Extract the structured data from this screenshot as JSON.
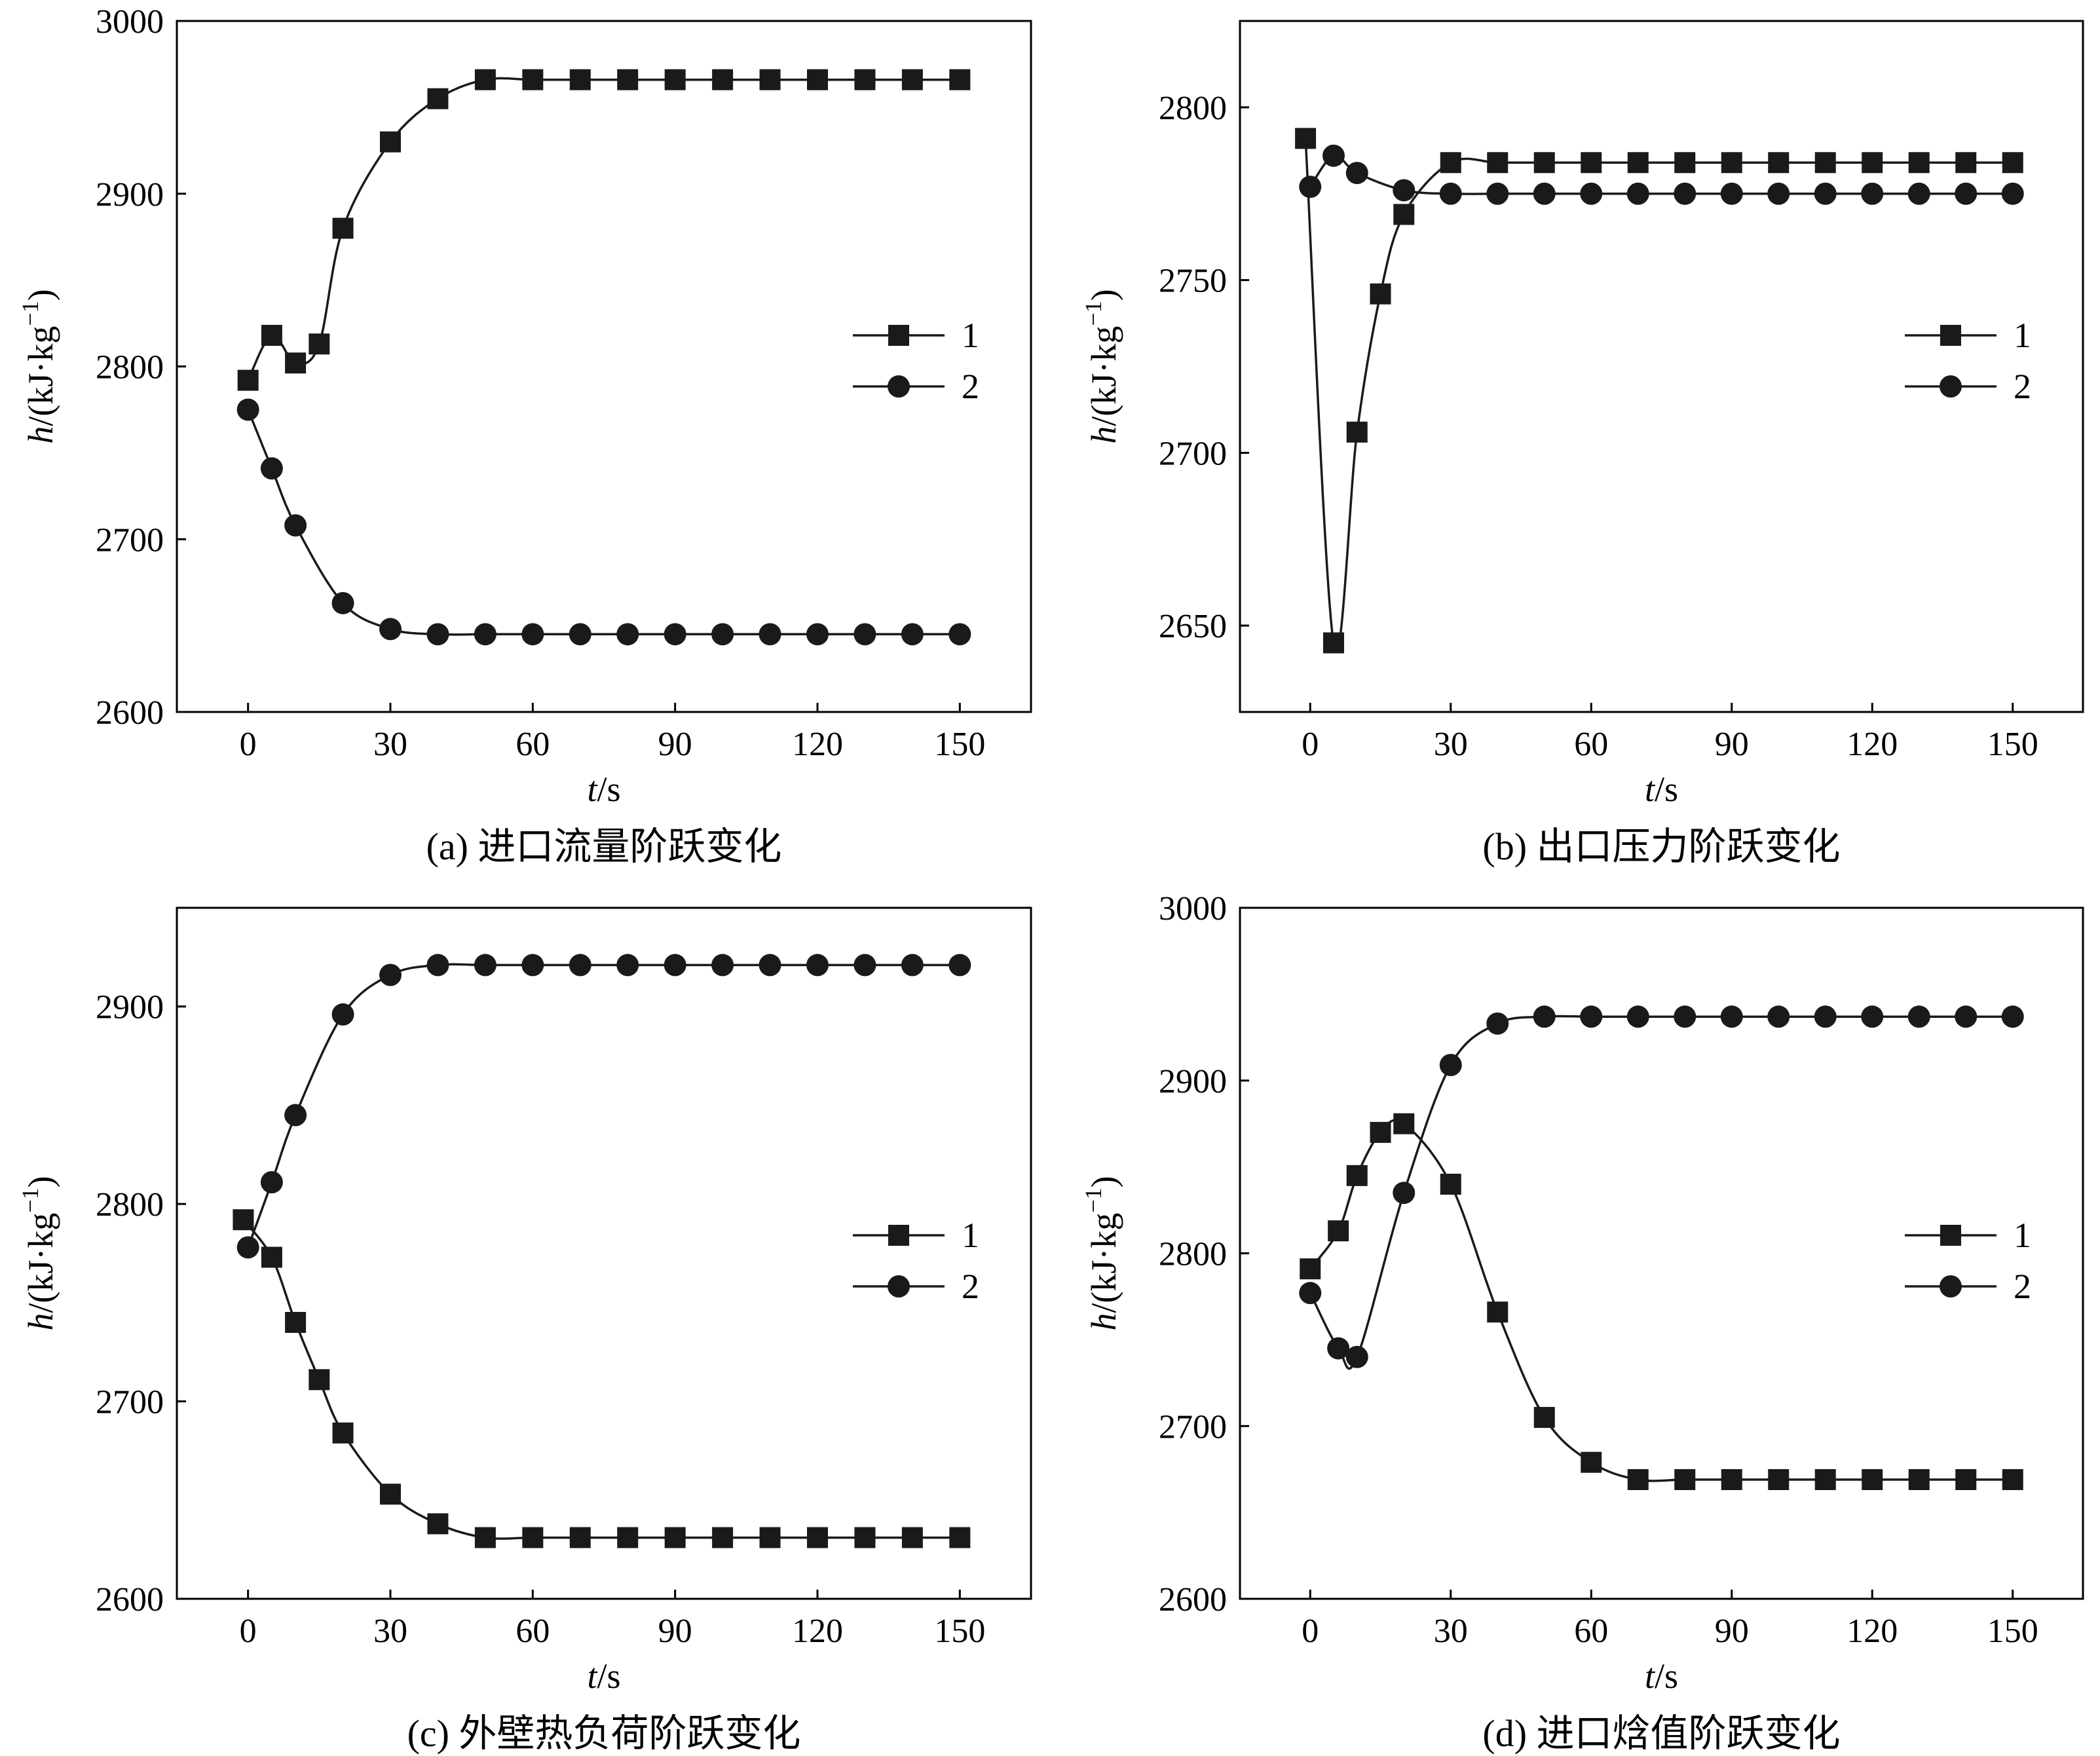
{
  "chart_data": [
    {
      "type": "line",
      "caption": "(a) 进口流量阶跃变化",
      "xlabel": "t/s",
      "ylabel": "h/(kJ·kg−1)",
      "xlim": [
        -15,
        165
      ],
      "ylim": [
        2600,
        3000
      ],
      "xticks": [
        0,
        30,
        60,
        90,
        120,
        150
      ],
      "yticks": [
        2600,
        2700,
        2800,
        2900,
        3000
      ],
      "legend": "right",
      "series": [
        {
          "name": "1",
          "marker": "square",
          "x": [
            0,
            5,
            10,
            15,
            20,
            30,
            40,
            50,
            60,
            70,
            80,
            90,
            100,
            110,
            120,
            130,
            140,
            150
          ],
          "y": [
            2792,
            2818,
            2802,
            2813,
            2880,
            2930,
            2955,
            2966,
            2966,
            2966,
            2966,
            2966,
            2966,
            2966,
            2966,
            2966,
            2966,
            2966
          ]
        },
        {
          "name": "2",
          "marker": "circle",
          "x": [
            0,
            5,
            10,
            20,
            30,
            40,
            50,
            60,
            70,
            80,
            90,
            100,
            110,
            120,
            130,
            140,
            150
          ],
          "y": [
            2775,
            2741,
            2708,
            2663,
            2648,
            2645,
            2645,
            2645,
            2645,
            2645,
            2645,
            2645,
            2645,
            2645,
            2645,
            2645,
            2645
          ]
        }
      ]
    },
    {
      "type": "line",
      "caption": "(b) 出口压力阶跃变化",
      "xlabel": "t/s",
      "ylabel": "h/(kJ·kg−1)",
      "xlim": [
        -15,
        165
      ],
      "ylim": [
        2625,
        2825
      ],
      "xticks": [
        0,
        30,
        60,
        90,
        120,
        150
      ],
      "yticks": [
        2650,
        2700,
        2750,
        2800
      ],
      "legend": "right",
      "series": [
        {
          "name": "1",
          "marker": "square",
          "x": [
            -1,
            5,
            10,
            15,
            20,
            30,
            40,
            50,
            60,
            70,
            80,
            90,
            100,
            110,
            120,
            130,
            140,
            150
          ],
          "y": [
            2791,
            2645,
            2706,
            2746,
            2769,
            2784,
            2784,
            2784,
            2784,
            2784,
            2784,
            2784,
            2784,
            2784,
            2784,
            2784,
            2784,
            2784
          ]
        },
        {
          "name": "2",
          "marker": "circle",
          "x": [
            0,
            5,
            10,
            20,
            30,
            40,
            50,
            60,
            70,
            80,
            90,
            100,
            110,
            120,
            130,
            140,
            150
          ],
          "y": [
            2777,
            2786,
            2781,
            2776,
            2775,
            2775,
            2775,
            2775,
            2775,
            2775,
            2775,
            2775,
            2775,
            2775,
            2775,
            2775,
            2775
          ]
        }
      ]
    },
    {
      "type": "line",
      "caption": "(c) 外壁热负荷阶跃变化",
      "xlabel": "t/s",
      "ylabel": "h/(kJ·kg−1)",
      "xlim": [
        -15,
        165
      ],
      "ylim": [
        2600,
        2950
      ],
      "xticks": [
        0,
        30,
        60,
        90,
        120,
        150
      ],
      "yticks": [
        2600,
        2700,
        2800,
        2900
      ],
      "legend": "right",
      "series": [
        {
          "name": "1",
          "marker": "square",
          "x": [
            -1,
            5,
            10,
            15,
            20,
            30,
            40,
            50,
            60,
            70,
            80,
            90,
            100,
            110,
            120,
            130,
            140,
            150
          ],
          "y": [
            2792,
            2773,
            2740,
            2711,
            2684,
            2653,
            2638,
            2631,
            2631,
            2631,
            2631,
            2631,
            2631,
            2631,
            2631,
            2631,
            2631,
            2631
          ]
        },
        {
          "name": "2",
          "marker": "circle",
          "x": [
            0,
            5,
            10,
            20,
            30,
            40,
            50,
            60,
            70,
            80,
            90,
            100,
            110,
            120,
            130,
            140,
            150
          ],
          "y": [
            2778,
            2811,
            2845,
            2896,
            2916,
            2921,
            2921,
            2921,
            2921,
            2921,
            2921,
            2921,
            2921,
            2921,
            2921,
            2921,
            2921
          ]
        }
      ]
    },
    {
      "type": "line",
      "caption": "(d) 进口焓值阶跃变化",
      "xlabel": "t/s",
      "ylabel": "h/(kJ·kg−1)",
      "xlim": [
        -15,
        165
      ],
      "ylim": [
        2600,
        3000
      ],
      "xticks": [
        0,
        30,
        60,
        90,
        120,
        150
      ],
      "yticks": [
        2600,
        2700,
        2800,
        2900,
        3000
      ],
      "legend": "right",
      "series": [
        {
          "name": "1",
          "marker": "square",
          "x": [
            0,
            6,
            10,
            15,
            20,
            30,
            40,
            50,
            60,
            70,
            80,
            90,
            100,
            110,
            120,
            130,
            140,
            150
          ],
          "y": [
            2791,
            2813,
            2845,
            2870,
            2875,
            2840,
            2766,
            2705,
            2679,
            2669,
            2669,
            2669,
            2669,
            2669,
            2669,
            2669,
            2669,
            2669
          ]
        },
        {
          "name": "2",
          "marker": "circle",
          "x": [
            0,
            6,
            10,
            20,
            30,
            40,
            50,
            60,
            70,
            80,
            90,
            100,
            110,
            120,
            130,
            140,
            150
          ],
          "y": [
            2777,
            2745,
            2740,
            2835,
            2909,
            2933,
            2937,
            2937,
            2937,
            2937,
            2937,
            2937,
            2937,
            2937,
            2937,
            2937,
            2937
          ]
        }
      ]
    }
  ]
}
